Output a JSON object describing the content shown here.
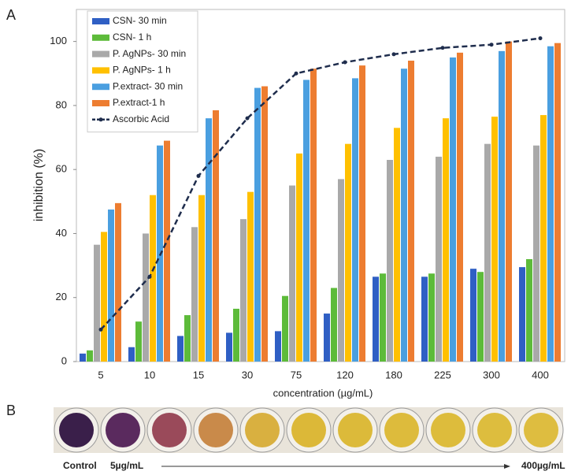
{
  "panel_labels": [
    "A",
    "B"
  ],
  "chart_data": {
    "type": "bar",
    "xlabel": "concentration (µg/mL)",
    "ylabel": "inhibition (%)",
    "categories": [
      "5",
      "10",
      "15",
      "30",
      "75",
      "120",
      "180",
      "225",
      "300",
      "400"
    ],
    "ylim": [
      0,
      110
    ],
    "yticks": [
      0,
      20,
      40,
      60,
      80,
      100
    ],
    "legend": "upper left",
    "series": [
      {
        "name": "CSN- 30 min",
        "color": "#2f5fc4",
        "values": [
          2.5,
          4.5,
          8,
          9,
          9.5,
          15,
          26.5,
          26.5,
          29,
          29.5
        ]
      },
      {
        "name": "CSN- 1 h",
        "color": "#5dbb3a",
        "values": [
          3.5,
          12.5,
          14.5,
          16.5,
          20.5,
          23,
          27.5,
          27.5,
          28,
          32
        ]
      },
      {
        "name": "P. AgNPs- 30 min",
        "color": "#a9a9a9",
        "values": [
          36.5,
          40,
          42,
          44.5,
          55,
          57,
          63,
          64,
          68,
          67.5
        ]
      },
      {
        "name": "P. AgNPs- 1 h",
        "color": "#ffc000",
        "values": [
          40.5,
          52,
          52,
          53,
          65,
          68,
          73,
          76,
          76.5,
          77
        ]
      },
      {
        "name": "P.extract- 30 min",
        "color": "#4a9fe0",
        "values": [
          47.5,
          67.5,
          76,
          85.5,
          88,
          88.5,
          91.5,
          95,
          97,
          98.5
        ]
      },
      {
        "name": "P.extract-1 h",
        "color": "#ed7d31",
        "values": [
          49.5,
          69,
          78.5,
          86,
          91.5,
          92.5,
          94,
          96.5,
          100,
          99.5
        ]
      },
      {
        "name": "Ascorbic Acid",
        "type": "line",
        "color": "#1f2d4d",
        "values": [
          10,
          26.5,
          58,
          76,
          90,
          93.5,
          96,
          98,
          99,
          101
        ]
      }
    ]
  },
  "panel_b": {
    "labels": [
      "Control",
      "5µg/mL",
      "400µg/mL"
    ]
  }
}
